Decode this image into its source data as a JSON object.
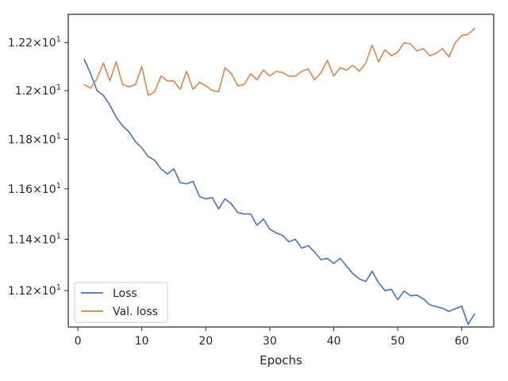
{
  "chart_data": {
    "type": "line",
    "title": "",
    "xlabel": "Epochs",
    "ylabel": "",
    "y_scale": "log",
    "xlim": [
      -1.5,
      65
    ],
    "ylim": [
      11.06,
      12.32
    ],
    "grid": false,
    "legend_position": "lower-left",
    "x_ticks": [
      0,
      10,
      20,
      30,
      40,
      50,
      60
    ],
    "x_tick_labels": [
      "0",
      "10",
      "20",
      "30",
      "40",
      "50",
      "60"
    ],
    "y_ticks": [
      11.2,
      11.4,
      11.6,
      11.8,
      12.0,
      12.2
    ],
    "y_tick_labels": [
      {
        "base": "1.12",
        "times": "×",
        "exp_base": "10",
        "exp": "1"
      },
      {
        "base": "1.14",
        "times": "×",
        "exp_base": "10",
        "exp": "1"
      },
      {
        "base": "1.16",
        "times": "×",
        "exp_base": "10",
        "exp": "1"
      },
      {
        "base": "1.18",
        "times": "×",
        "exp_base": "10",
        "exp": "1"
      },
      {
        "base": "1.2",
        "times": "×",
        "exp_base": "10",
        "exp": "1"
      },
      {
        "base": "1.22",
        "times": "×",
        "exp_base": "10",
        "exp": "1"
      }
    ],
    "series": [
      {
        "name": "Loss",
        "color": "#4c72b0",
        "x": [
          1,
          2,
          3,
          4,
          5,
          6,
          7,
          8,
          9,
          10,
          11,
          12,
          13,
          14,
          15,
          16,
          17,
          18,
          19,
          20,
          21,
          22,
          23,
          24,
          25,
          26,
          27,
          28,
          29,
          30,
          31,
          32,
          33,
          34,
          35,
          36,
          37,
          38,
          39,
          40,
          41,
          42,
          43,
          44,
          45,
          46,
          47,
          48,
          49,
          50,
          51,
          52,
          53,
          54,
          55,
          56,
          57,
          58,
          59,
          60,
          61,
          62
        ],
        "y": [
          12.13,
          12.07,
          12.0,
          11.98,
          11.94,
          11.89,
          11.855,
          11.83,
          11.79,
          11.765,
          11.73,
          11.715,
          11.68,
          11.66,
          11.68,
          11.625,
          11.62,
          11.63,
          11.57,
          11.56,
          11.565,
          11.52,
          11.56,
          11.54,
          11.505,
          11.5,
          11.5,
          11.455,
          11.48,
          11.44,
          11.425,
          11.415,
          11.39,
          11.4,
          11.365,
          11.375,
          11.35,
          11.32,
          11.325,
          11.305,
          11.325,
          11.295,
          11.265,
          11.245,
          11.235,
          11.275,
          11.23,
          11.2,
          11.205,
          11.165,
          11.198,
          11.18,
          11.182,
          11.168,
          11.145,
          11.138,
          11.132,
          11.12,
          11.13,
          11.14,
          11.07,
          11.11
        ]
      },
      {
        "name": "Val. loss",
        "color": "#dd8452",
        "x": [
          1,
          2,
          3,
          4,
          5,
          6,
          7,
          8,
          9,
          10,
          11,
          12,
          13,
          14,
          15,
          16,
          17,
          18,
          19,
          20,
          21,
          22,
          23,
          24,
          25,
          26,
          27,
          28,
          29,
          30,
          31,
          32,
          33,
          34,
          35,
          36,
          37,
          38,
          39,
          40,
          41,
          42,
          43,
          44,
          45,
          46,
          47,
          48,
          49,
          50,
          51,
          52,
          53,
          54,
          55,
          56,
          57,
          58,
          59,
          60,
          61,
          62
        ],
        "y": [
          12.025,
          12.01,
          12.05,
          12.115,
          12.04,
          12.12,
          12.025,
          12.015,
          12.025,
          12.1,
          11.98,
          11.995,
          12.06,
          12.04,
          12.04,
          12.005,
          12.08,
          12.005,
          12.035,
          12.02,
          12.0,
          11.995,
          12.095,
          12.07,
          12.02,
          12.025,
          12.07,
          12.045,
          12.085,
          12.06,
          12.08,
          12.075,
          12.06,
          12.06,
          12.08,
          12.09,
          12.045,
          12.075,
          12.125,
          12.06,
          12.095,
          12.085,
          12.105,
          12.08,
          12.115,
          12.19,
          12.12,
          12.17,
          12.145,
          12.16,
          12.2,
          12.195,
          12.165,
          12.175,
          12.145,
          12.155,
          12.175,
          12.14,
          12.2,
          12.23,
          12.235,
          12.26
        ]
      }
    ]
  }
}
